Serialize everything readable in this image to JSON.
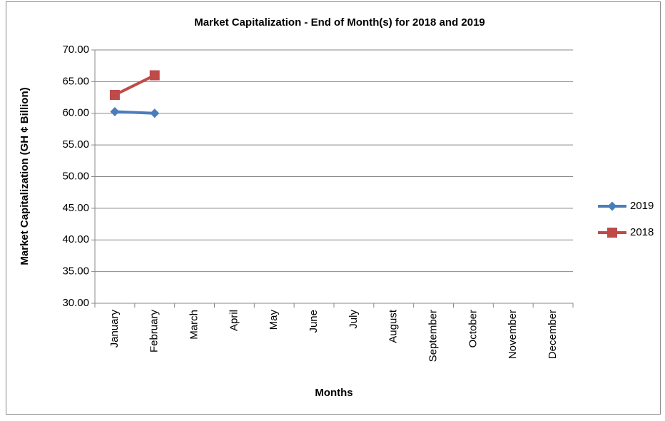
{
  "chart_data": {
    "type": "line",
    "title": "Market Capitalization - End of Month(s) for 2018 and 2019",
    "x_label": "Months",
    "y_label": "Market Capitalization (GH ¢ Billion)",
    "categories": [
      "January",
      "February",
      "March",
      "April",
      "May",
      "June",
      "July",
      "August",
      "September",
      "October",
      "November",
      "December"
    ],
    "series": [
      {
        "name": "2019",
        "color": "#4a7ebb",
        "marker": "diamond",
        "values": [
          60.25,
          60.0,
          null,
          null,
          null,
          null,
          null,
          null,
          null,
          null,
          null,
          null
        ]
      },
      {
        "name": "2018",
        "color": "#be4b48",
        "marker": "square",
        "values": [
          62.9,
          66.0,
          null,
          null,
          null,
          null,
          null,
          null,
          null,
          null,
          null,
          null
        ]
      }
    ],
    "ylim": [
      30,
      70
    ],
    "yticks": [
      {
        "value": 30,
        "label": "30.00"
      },
      {
        "value": 35,
        "label": "35.00"
      },
      {
        "value": 40,
        "label": "40.00"
      },
      {
        "value": 45,
        "label": "45.00"
      },
      {
        "value": 50,
        "label": "50.00"
      },
      {
        "value": 55,
        "label": "55.00"
      },
      {
        "value": 60,
        "label": "60.00"
      },
      {
        "value": 65,
        "label": "65.00"
      },
      {
        "value": 70,
        "label": "70.00"
      }
    ],
    "grid": true,
    "legend": "right"
  }
}
